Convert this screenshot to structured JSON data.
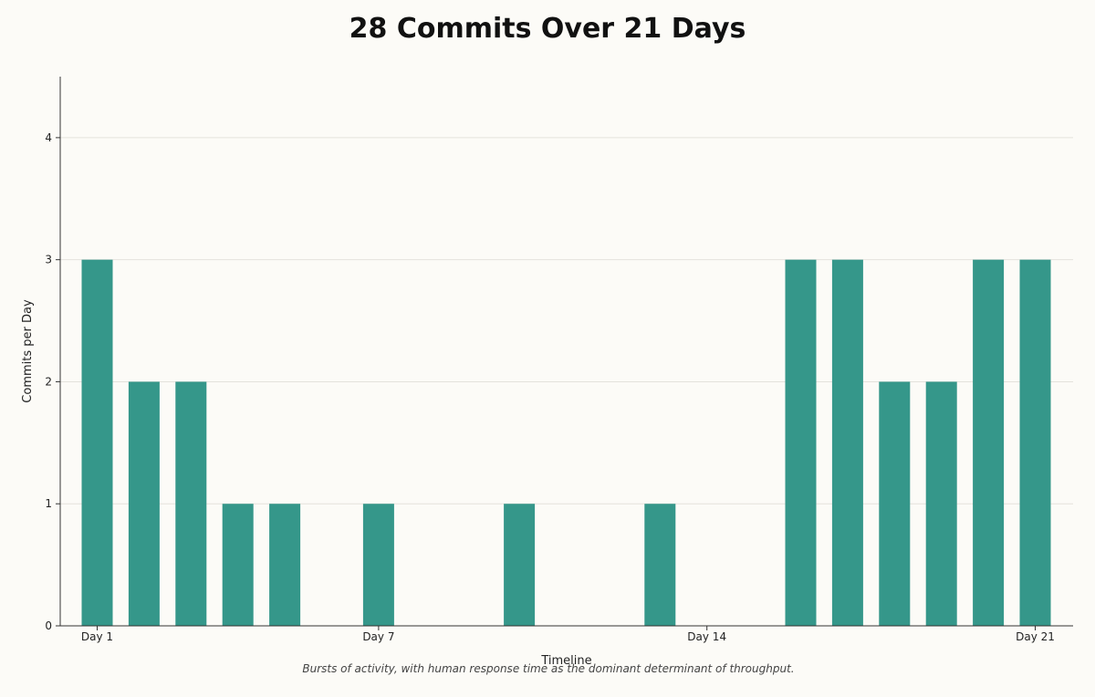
{
  "chart_data": {
    "type": "bar",
    "title": "28 Commits Over 21 Days",
    "xlabel": "Timeline",
    "ylabel": "Commits per Day",
    "caption": "Bursts of activity, with human response time as the dominant determinant of throughput.",
    "days": [
      1,
      2,
      3,
      4,
      5,
      6,
      7,
      8,
      9,
      10,
      11,
      12,
      13,
      14,
      15,
      16,
      17,
      18,
      19,
      20,
      21
    ],
    "values": [
      3,
      2,
      2,
      1,
      1,
      0,
      1,
      0,
      0,
      1,
      0,
      0,
      1,
      0,
      0,
      3,
      3,
      2,
      2,
      3,
      3
    ],
    "x_ticks": [
      {
        "day": 1,
        "label": "Day 1"
      },
      {
        "day": 7,
        "label": "Day 7"
      },
      {
        "day": 14,
        "label": "Day 14"
      },
      {
        "day": 21,
        "label": "Day 21"
      }
    ],
    "y_ticks": [
      0,
      1,
      2,
      3,
      4
    ],
    "ylim": [
      0,
      4.5
    ],
    "grid": "horizontal",
    "bar_color": "#35978a"
  }
}
